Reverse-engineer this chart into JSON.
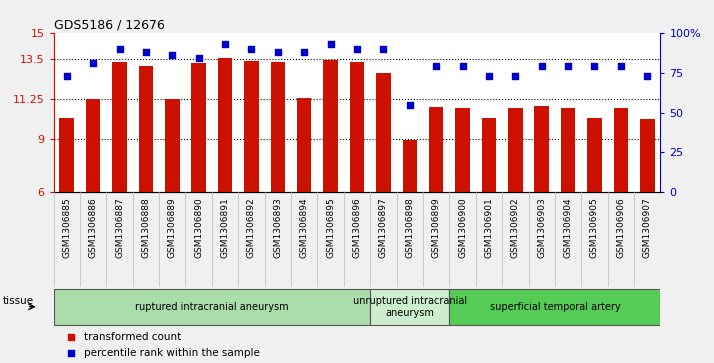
{
  "title": "GDS5186 / 12676",
  "samples": [
    "GSM1306885",
    "GSM1306886",
    "GSM1306887",
    "GSM1306888",
    "GSM1306889",
    "GSM1306890",
    "GSM1306891",
    "GSM1306892",
    "GSM1306893",
    "GSM1306894",
    "GSM1306895",
    "GSM1306896",
    "GSM1306897",
    "GSM1306898",
    "GSM1306899",
    "GSM1306900",
    "GSM1306901",
    "GSM1306902",
    "GSM1306903",
    "GSM1306904",
    "GSM1306905",
    "GSM1306906",
    "GSM1306907"
  ],
  "bar_values": [
    10.2,
    11.25,
    13.35,
    13.1,
    11.25,
    13.3,
    13.6,
    13.4,
    13.35,
    11.3,
    13.45,
    13.35,
    12.75,
    8.95,
    10.8,
    10.75,
    10.2,
    10.75,
    10.85,
    10.75,
    10.2,
    10.75,
    10.15
  ],
  "percentile_values": [
    73,
    81,
    90,
    88,
    86,
    84,
    93,
    90,
    88,
    88,
    93,
    90,
    90,
    55,
    79,
    79,
    73,
    73,
    79,
    79,
    79,
    79,
    73
  ],
  "bar_color": "#cc1100",
  "dot_color": "#0000cc",
  "left_ylim": [
    6,
    15
  ],
  "left_yticks": [
    6,
    9,
    11.25,
    13.5,
    15
  ],
  "left_yticklabels": [
    "6",
    "9",
    "11.25",
    "13.5",
    "15"
  ],
  "right_ylim": [
    0,
    100
  ],
  "right_yticks": [
    0,
    25,
    50,
    75,
    100
  ],
  "right_yticklabels": [
    "0",
    "25",
    "50",
    "75",
    "100%"
  ],
  "hlines": [
    9,
    11.25,
    13.5
  ],
  "groups": [
    {
      "label": "ruptured intracranial aneurysm",
      "start": 0,
      "end": 12,
      "color": "#aaddaa"
    },
    {
      "label": "unruptured intracranial\naneurysm",
      "start": 12,
      "end": 15,
      "color": "#cceecc"
    },
    {
      "label": "superficial temporal artery",
      "start": 15,
      "end": 23,
      "color": "#55cc55"
    }
  ],
  "tissue_label": "tissue",
  "legend_bar_label": "transformed count",
  "legend_dot_label": "percentile rank within the sample",
  "bg_color": "#d8d8d8",
  "fig_bg": "#f0f0f0"
}
